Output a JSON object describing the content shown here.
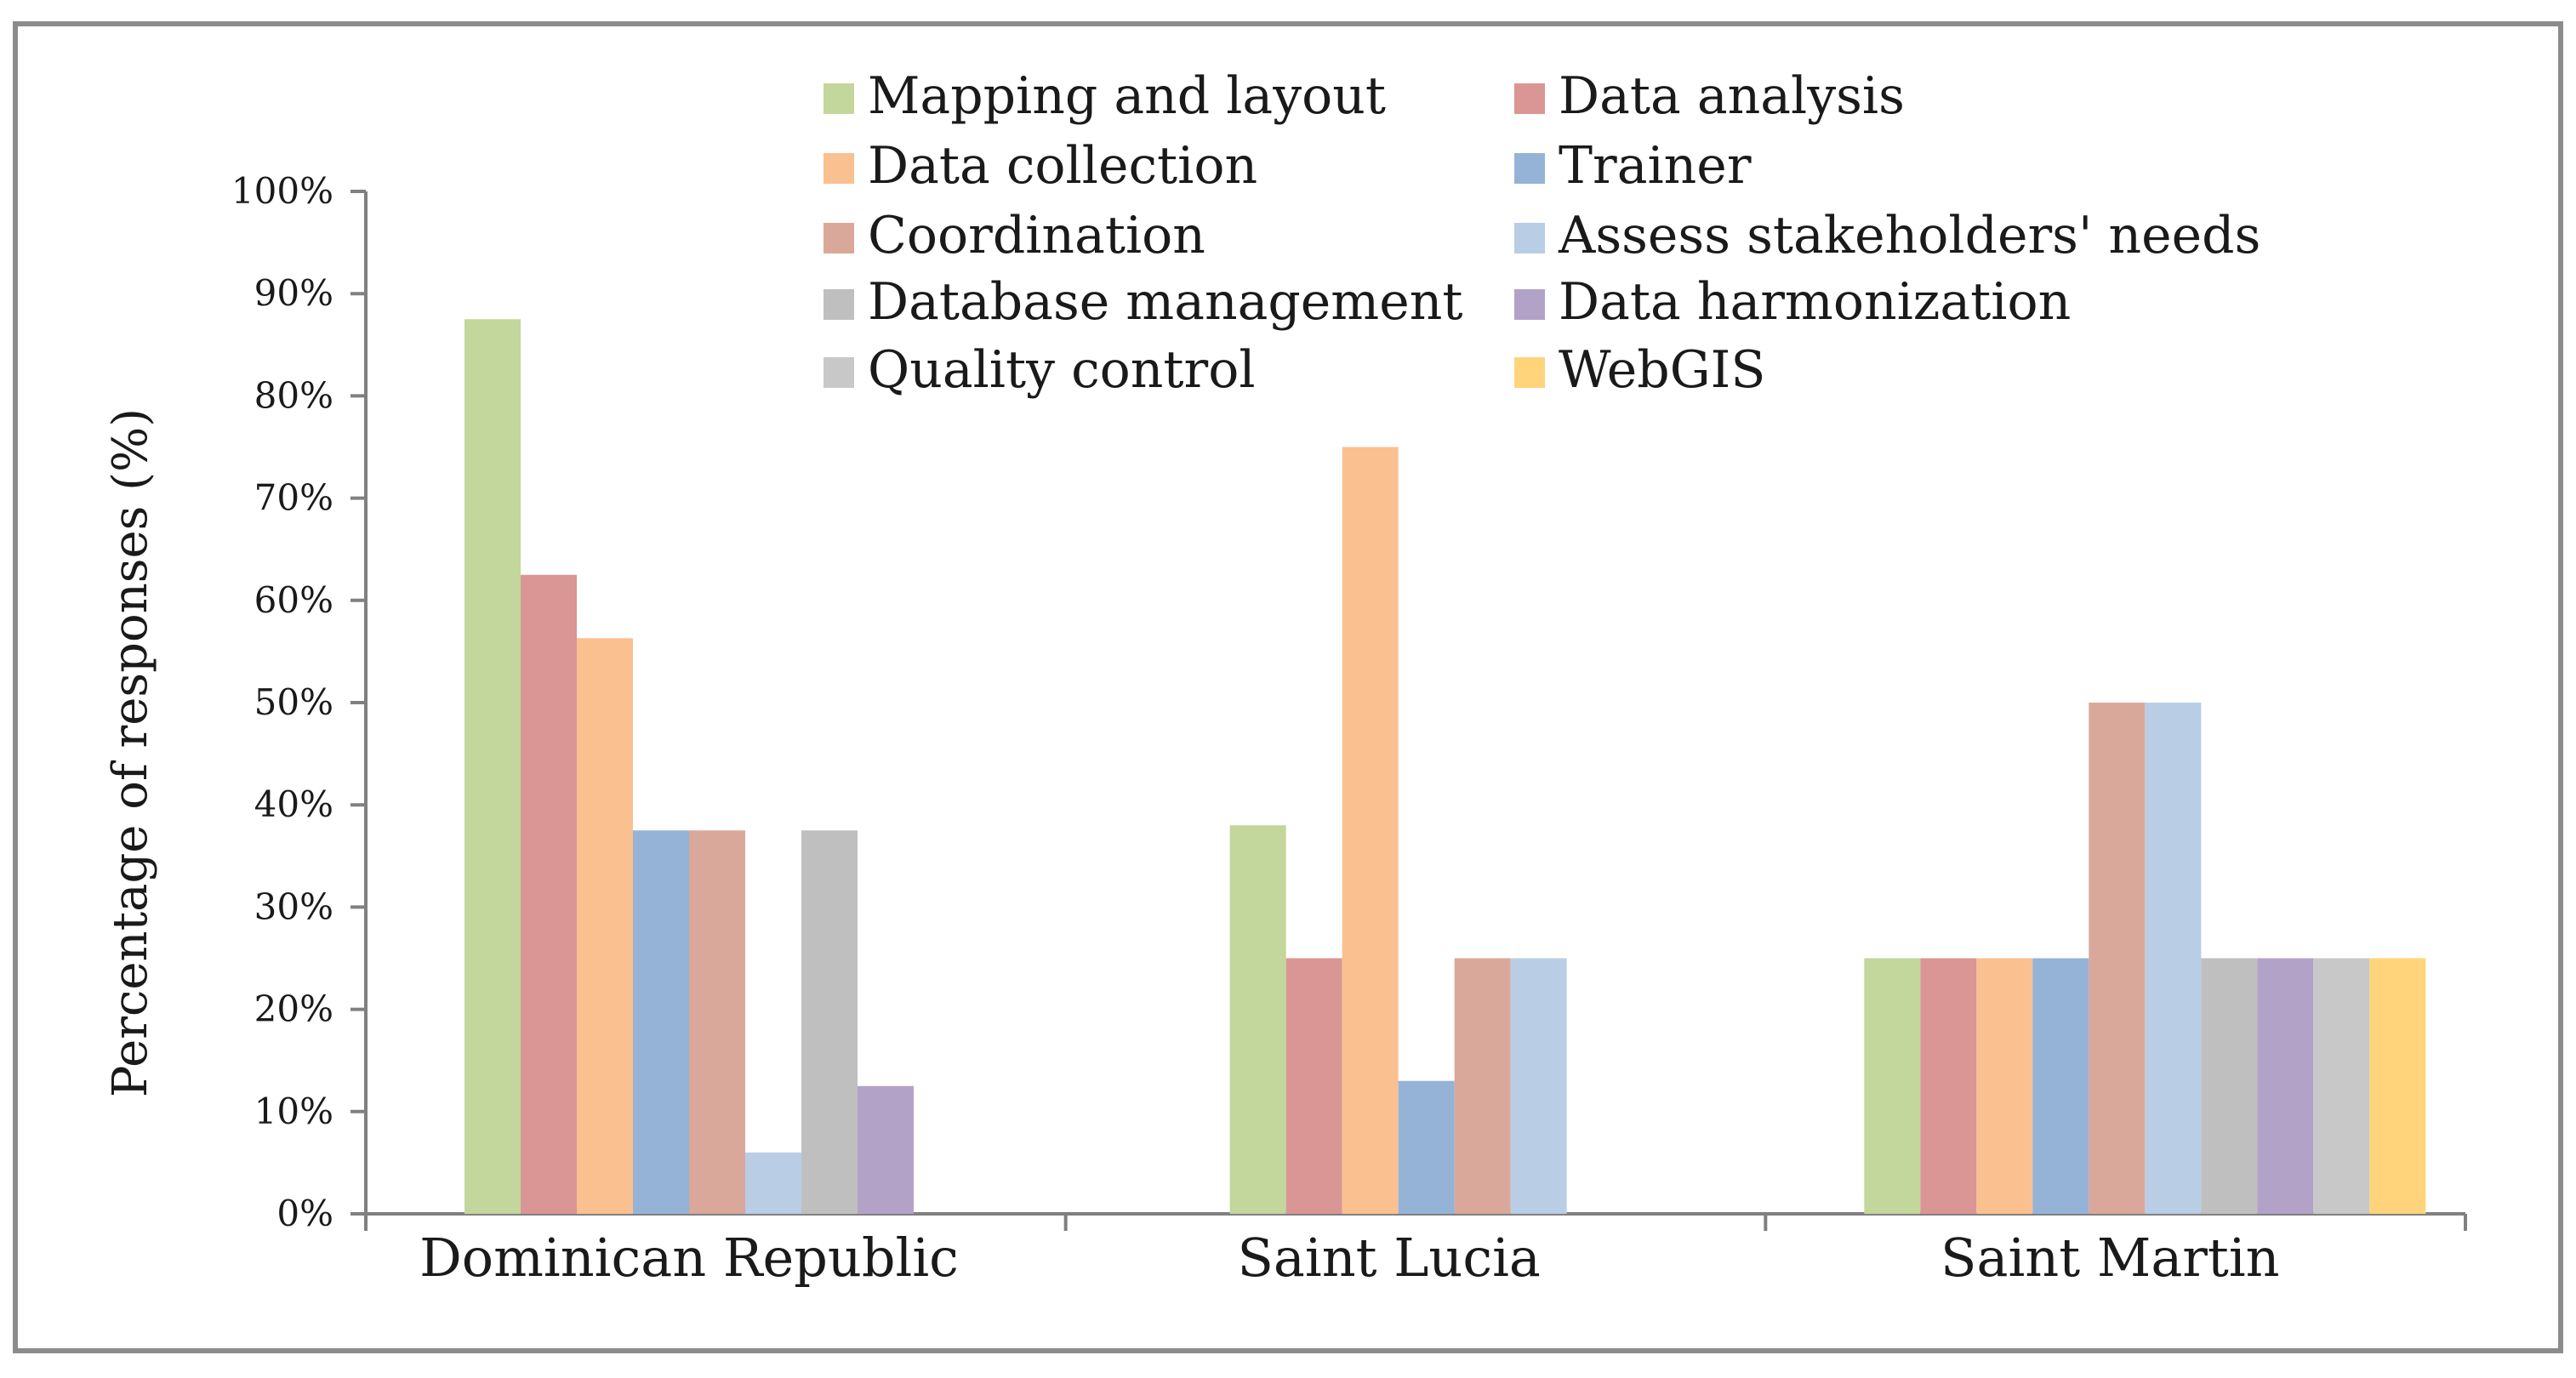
{
  "chart_data": {
    "type": "bar",
    "title": "",
    "xlabel": "",
    "ylabel": "Percentage of responses (%)",
    "ylim": [
      0,
      100
    ],
    "yticks": [
      0,
      10,
      20,
      30,
      40,
      50,
      60,
      70,
      80,
      90,
      100
    ],
    "ytick_labels": [
      "0%",
      "10%",
      "20%",
      "30%",
      "40%",
      "50%",
      "60%",
      "70%",
      "80%",
      "90%",
      "100%"
    ],
    "categories": [
      "Dominican Republic",
      "Saint Lucia",
      "Saint Martin"
    ],
    "legend_position": "top",
    "series": [
      {
        "name": "Mapping and layout",
        "color": "#C3D69B",
        "values": [
          87.5,
          38,
          25
        ]
      },
      {
        "name": "Data analysis",
        "color": "#D99694",
        "values": [
          62.5,
          25,
          25
        ]
      },
      {
        "name": "Data collection",
        "color": "#FAC090",
        "values": [
          56.3,
          75,
          25
        ]
      },
      {
        "name": "Trainer",
        "color": "#95B3D7",
        "values": [
          37.5,
          13,
          25
        ]
      },
      {
        "name": "Coordination",
        "color": "#D9A89A",
        "values": [
          37.5,
          25,
          50
        ]
      },
      {
        "name": "Assess stakeholders' needs",
        "color": "#B9CDE5",
        "values": [
          6,
          25,
          50
        ]
      },
      {
        "name": "Database management",
        "color": "#BFBFBF",
        "values": [
          37.5,
          null,
          25
        ]
      },
      {
        "name": "Data harmonization",
        "color": "#B3A2C7",
        "values": [
          12.5,
          null,
          25
        ]
      },
      {
        "name": "Quality control",
        "color": "#C8C8C8",
        "values": [
          null,
          null,
          25
        ]
      },
      {
        "name": "WebGIS",
        "color": "#FFD47A",
        "values": [
          null,
          null,
          25
        ]
      }
    ]
  }
}
